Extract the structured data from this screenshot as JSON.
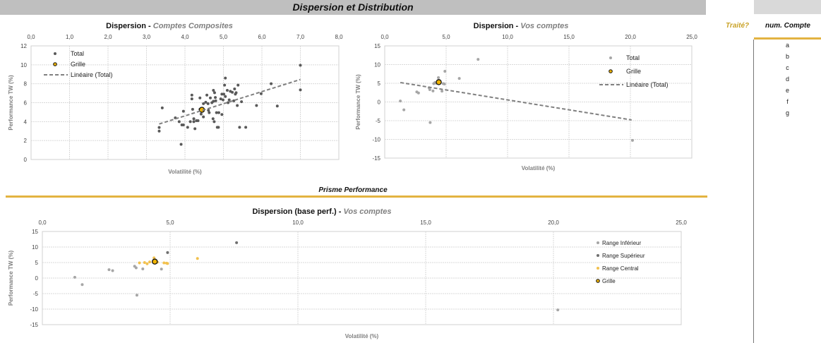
{
  "header": {
    "title": "Dispersion et Distribution"
  },
  "side": {
    "traite_label": "Traité?",
    "num_compte_label": "num. Compte",
    "accounts": [
      "a",
      "b",
      "c",
      "d",
      "e",
      "f",
      "g"
    ]
  },
  "section": {
    "prisme_label": "Prisme Performance"
  },
  "colors": {
    "accent": "#e3b341",
    "total_dark": "#595959",
    "total_light": "#a6a6a6",
    "central": "#f2c14e",
    "grille": "#f0b400",
    "trend": "#808080"
  },
  "chart_data": [
    {
      "type": "scatter",
      "title_main": "Dispersion - ",
      "title_sub": "Comptes Composites",
      "xlabel": "Volatilité (%)",
      "ylabel": "Performance TW (%)",
      "xlim": [
        0,
        8
      ],
      "ylim": [
        0,
        12
      ],
      "xticks": [
        "0,0",
        "1,0",
        "2,0",
        "3,0",
        "4,0",
        "5,0",
        "6,0",
        "7,0",
        "8,0"
      ],
      "yticks": [
        "0",
        "2",
        "4",
        "6",
        "8",
        "10",
        "12"
      ],
      "grid": true,
      "legend": "top-left",
      "series": [
        {
          "name": "Total",
          "color": "#595959",
          "points": [
            [
              3.33,
              3.38
            ],
            [
              3.33,
              3.0
            ],
            [
              3.41,
              5.45
            ],
            [
              3.75,
              4.4
            ],
            [
              3.85,
              4.0
            ],
            [
              3.9,
              1.6
            ],
            [
              3.92,
              3.65
            ],
            [
              3.96,
              3.65
            ],
            [
              3.96,
              5.1
            ],
            [
              4.07,
              3.4
            ],
            [
              4.14,
              4.0
            ],
            [
              4.18,
              6.8
            ],
            [
              4.18,
              6.4
            ],
            [
              4.2,
              5.3
            ],
            [
              4.23,
              4.3
            ],
            [
              4.23,
              4.0
            ],
            [
              4.26,
              3.25
            ],
            [
              4.3,
              4.1
            ],
            [
              4.34,
              4.1
            ],
            [
              4.39,
              6.5
            ],
            [
              4.39,
              5.3
            ],
            [
              4.42,
              4.8
            ],
            [
              4.48,
              4.5
            ],
            [
              4.48,
              5.9
            ],
            [
              4.54,
              6.05
            ],
            [
              4.57,
              6.8
            ],
            [
              4.6,
              5.9
            ],
            [
              4.61,
              5.2
            ],
            [
              4.63,
              4.95
            ],
            [
              4.66,
              6.5
            ],
            [
              4.7,
              6.0
            ],
            [
              4.73,
              4.3
            ],
            [
              4.74,
              7.3
            ],
            [
              4.74,
              6.15
            ],
            [
              4.76,
              4.0
            ],
            [
              4.77,
              7.05
            ],
            [
              4.79,
              6.55
            ],
            [
              4.8,
              6.2
            ],
            [
              4.82,
              4.95
            ],
            [
              4.84,
              3.4
            ],
            [
              4.87,
              3.4
            ],
            [
              4.88,
              4.95
            ],
            [
              4.93,
              6.4
            ],
            [
              4.96,
              4.75
            ],
            [
              4.96,
              6.9
            ],
            [
              4.99,
              6.3
            ],
            [
              5.01,
              6.9
            ],
            [
              5.03,
              7.85
            ],
            [
              5.05,
              8.6
            ],
            [
              5.05,
              6.65
            ],
            [
              5.1,
              7.3
            ],
            [
              5.12,
              6.0
            ],
            [
              5.15,
              6.3
            ],
            [
              5.18,
              7.2
            ],
            [
              5.23,
              7.1
            ],
            [
              5.27,
              6.2
            ],
            [
              5.29,
              7.45
            ],
            [
              5.31,
              6.9
            ],
            [
              5.33,
              7.05
            ],
            [
              5.36,
              5.7
            ],
            [
              5.38,
              7.85
            ],
            [
              5.42,
              3.4
            ],
            [
              5.47,
              6.1
            ],
            [
              5.58,
              3.4
            ],
            [
              5.86,
              5.7
            ],
            [
              5.98,
              6.95
            ],
            [
              6.24,
              8.0
            ],
            [
              6.4,
              5.65
            ],
            [
              7.0,
              7.35
            ],
            [
              7.0,
              9.95
            ]
          ]
        },
        {
          "name": "Grille",
          "color": "#f0b400",
          "marker": "ring",
          "points": [
            [
              4.44,
              5.25
            ]
          ]
        },
        {
          "name": "Linéaire (Total)",
          "color": "#808080",
          "kind": "trend",
          "points": [
            [
              3.33,
              3.75
            ],
            [
              7.0,
              8.45
            ]
          ]
        }
      ]
    },
    {
      "type": "scatter",
      "title_main": "Dispersion - ",
      "title_sub": "Vos comptes",
      "xlabel": "Volatilité (%)",
      "ylabel": "Performance TW (%)",
      "xlim": [
        0,
        25
      ],
      "ylim": [
        -15,
        15
      ],
      "xticks": [
        "0,0",
        "5,0",
        "10,0",
        "15,0",
        "20,0",
        "25,0"
      ],
      "yticks": [
        "-15",
        "-10",
        "-5",
        "0",
        "5",
        "10",
        "15"
      ],
      "grid": true,
      "legend": "top-right",
      "series": [
        {
          "name": "Total",
          "color": "#a6a6a6",
          "points": [
            [
              1.27,
              0.25
            ],
            [
              1.56,
              -2.1
            ],
            [
              2.61,
              2.7
            ],
            [
              2.75,
              2.4
            ],
            [
              3.61,
              3.8
            ],
            [
              3.67,
              3.3
            ],
            [
              3.7,
              -5.5
            ],
            [
              3.93,
              2.95
            ],
            [
              3.99,
              4.9
            ],
            [
              4.09,
              5.2
            ],
            [
              4.2,
              5.0
            ],
            [
              4.37,
              6.5
            ],
            [
              4.5,
              5.1
            ],
            [
              4.66,
              2.9
            ],
            [
              4.76,
              4.9
            ],
            [
              4.86,
              4.8
            ],
            [
              4.9,
              8.2
            ],
            [
              6.07,
              6.3
            ],
            [
              7.6,
              11.4
            ],
            [
              20.17,
              -10.25
            ]
          ]
        },
        {
          "name": "Grille",
          "color": "#f0b400",
          "marker": "ring",
          "points": [
            [
              4.4,
              5.3
            ]
          ]
        },
        {
          "name": "Linéaire (Total)",
          "color": "#808080",
          "kind": "trend",
          "points": [
            [
              1.27,
              5.2
            ],
            [
              20.1,
              -4.8
            ]
          ]
        }
      ]
    },
    {
      "type": "scatter",
      "title_main": "Dispersion (base perf.) - ",
      "title_sub": "Vos comptes",
      "xlabel": "Volatilité (%)",
      "ylabel": "Performance TW (%)",
      "xlim": [
        0,
        25
      ],
      "ylim": [
        -15,
        15
      ],
      "xticks": [
        "0,0",
        "5,0",
        "10,0",
        "15,0",
        "20,0",
        "25,0"
      ],
      "yticks": [
        "-15",
        "-10",
        "-5",
        "0",
        "5",
        "10",
        "15"
      ],
      "grid": true,
      "legend": "right",
      "series": [
        {
          "name": "Range Inférieur",
          "color": "#a6a6a6",
          "points": [
            [
              1.27,
              0.25
            ],
            [
              1.56,
              -2.1
            ],
            [
              2.61,
              2.7
            ],
            [
              2.75,
              2.4
            ],
            [
              3.61,
              3.8
            ],
            [
              3.67,
              3.3
            ],
            [
              3.7,
              -5.5
            ],
            [
              3.93,
              2.95
            ],
            [
              4.66,
              2.9
            ],
            [
              20.17,
              -10.25
            ]
          ]
        },
        {
          "name": "Range Supérieur",
          "color": "#6f6f6f",
          "points": [
            [
              4.9,
              8.2
            ],
            [
              7.6,
              11.4
            ]
          ]
        },
        {
          "name": "Range Central",
          "color": "#f2c14e",
          "points": [
            [
              3.8,
              4.9
            ],
            [
              4.0,
              5.0
            ],
            [
              4.1,
              4.6
            ],
            [
              4.2,
              5.2
            ],
            [
              4.37,
              6.5
            ],
            [
              4.5,
              5.1
            ],
            [
              4.76,
              4.9
            ],
            [
              4.86,
              4.8
            ],
            [
              4.9,
              4.7
            ],
            [
              6.07,
              6.3
            ]
          ]
        },
        {
          "name": "Grille",
          "color": "#f0b400",
          "marker": "ring",
          "points": [
            [
              4.4,
              5.3
            ]
          ]
        }
      ]
    }
  ]
}
